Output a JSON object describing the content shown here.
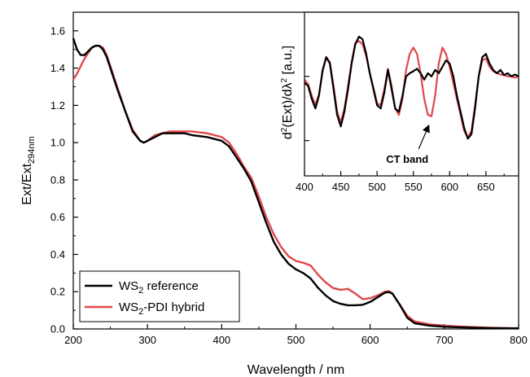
{
  "chart_data": [
    {
      "type": "line",
      "xlabel": "Wavelength / nm",
      "ylabel_main": "Ext/Ext",
      "ylabel_sub": "294nm",
      "xlim": [
        200,
        800
      ],
      "ylim": [
        0,
        1.7
      ],
      "xticks": [
        200,
        300,
        400,
        500,
        600,
        700,
        800
      ],
      "yticks": [
        0.0,
        0.2,
        0.4,
        0.6,
        0.8,
        1.0,
        1.2,
        1.4,
        1.6
      ],
      "xtick_labels": [
        "200",
        "300",
        "400",
        "500",
        "600",
        "700",
        "800"
      ],
      "ytick_labels": [
        "0.0",
        "0.2",
        "0.4",
        "0.6",
        "0.8",
        "1.0",
        "1.2",
        "1.4",
        "1.6"
      ],
      "legend": {
        "position": "bottom-left",
        "entries": [
          {
            "main": "WS",
            "sub": "2",
            "rest": " reference",
            "color": "#000000"
          },
          {
            "main": "WS",
            "sub": "2",
            "rest": "-PDI hybrid",
            "color": "#e0474c"
          }
        ]
      },
      "series": [
        {
          "key": "ref",
          "color": "#000000",
          "x": [
            200,
            205,
            210,
            215,
            220,
            225,
            230,
            235,
            240,
            245,
            250,
            255,
            260,
            270,
            280,
            290,
            295,
            300,
            310,
            320,
            330,
            340,
            350,
            360,
            380,
            400,
            410,
            420,
            430,
            440,
            450,
            460,
            470,
            480,
            490,
            500,
            510,
            520,
            530,
            540,
            550,
            560,
            570,
            580,
            590,
            600,
            610,
            620,
            625,
            630,
            640,
            650,
            660,
            680,
            700,
            720,
            740,
            760,
            780,
            800
          ],
          "y": [
            1.56,
            1.5,
            1.47,
            1.47,
            1.49,
            1.51,
            1.52,
            1.52,
            1.5,
            1.46,
            1.4,
            1.34,
            1.28,
            1.17,
            1.06,
            1.01,
            1.0,
            1.01,
            1.03,
            1.05,
            1.05,
            1.05,
            1.05,
            1.04,
            1.03,
            1.01,
            0.98,
            0.92,
            0.86,
            0.79,
            0.68,
            0.57,
            0.47,
            0.4,
            0.35,
            0.32,
            0.3,
            0.27,
            0.22,
            0.18,
            0.15,
            0.135,
            0.127,
            0.127,
            0.13,
            0.145,
            0.17,
            0.195,
            0.198,
            0.19,
            0.13,
            0.06,
            0.03,
            0.018,
            0.012,
            0.009,
            0.007,
            0.005,
            0.004,
            0.003
          ]
        },
        {
          "key": "hybrid",
          "color": "#e0474c",
          "x": [
            200,
            205,
            210,
            215,
            220,
            225,
            230,
            235,
            240,
            245,
            250,
            255,
            260,
            270,
            280,
            290,
            295,
            300,
            310,
            320,
            330,
            340,
            350,
            360,
            380,
            400,
            410,
            420,
            430,
            440,
            450,
            460,
            470,
            480,
            490,
            500,
            510,
            520,
            530,
            540,
            550,
            560,
            570,
            580,
            590,
            600,
            610,
            620,
            625,
            630,
            640,
            650,
            660,
            680,
            700,
            720,
            740,
            760,
            780,
            800
          ],
          "y": [
            1.34,
            1.37,
            1.41,
            1.45,
            1.48,
            1.51,
            1.52,
            1.52,
            1.51,
            1.47,
            1.41,
            1.35,
            1.29,
            1.17,
            1.07,
            1.01,
            1.0,
            1.01,
            1.04,
            1.05,
            1.06,
            1.06,
            1.06,
            1.06,
            1.05,
            1.03,
            1.0,
            0.94,
            0.87,
            0.81,
            0.71,
            0.6,
            0.51,
            0.44,
            0.39,
            0.365,
            0.355,
            0.34,
            0.29,
            0.25,
            0.22,
            0.21,
            0.215,
            0.19,
            0.16,
            0.165,
            0.18,
            0.2,
            0.203,
            0.19,
            0.13,
            0.07,
            0.04,
            0.025,
            0.018,
            0.013,
            0.01,
            0.007,
            0.005,
            0.004
          ]
        }
      ]
    },
    {
      "type": "line",
      "xlabel": "",
      "ylabel": "d²(Ext)/dλ² [a.u.]",
      "ylabel_parts": {
        "d": "d",
        "sup1": "2",
        "mid": "(Ext)/dλ",
        "sup2": "2",
        "end": " [a.u.]"
      },
      "xlim": [
        400,
        695
      ],
      "ylim": [
        -1.55,
        1.0
      ],
      "xticks": [
        400,
        450,
        500,
        550,
        600,
        650
      ],
      "xtick_labels": [
        "400",
        "450",
        "500",
        "550",
        "600",
        "650"
      ],
      "yticks": [
        -1.0,
        0.0
      ],
      "annotation": {
        "text": "CT band",
        "x": 573,
        "y": -0.65
      },
      "series": [
        {
          "key": "ref",
          "color": "#000000",
          "x": [
            400,
            405,
            410,
            415,
            420,
            425,
            430,
            435,
            440,
            445,
            450,
            455,
            460,
            465,
            470,
            475,
            480,
            485,
            490,
            495,
            500,
            505,
            510,
            515,
            520,
            525,
            530,
            535,
            540,
            545,
            550,
            555,
            560,
            565,
            570,
            575,
            580,
            585,
            590,
            595,
            600,
            605,
            610,
            615,
            620,
            625,
            630,
            635,
            640,
            645,
            650,
            655,
            660,
            665,
            670,
            675,
            680,
            685,
            690,
            695
          ],
          "y": [
            -0.1,
            -0.15,
            -0.35,
            -0.5,
            -0.3,
            0.1,
            0.3,
            0.2,
            -0.2,
            -0.6,
            -0.78,
            -0.55,
            -0.2,
            0.2,
            0.5,
            0.62,
            0.58,
            0.35,
            0.05,
            -0.2,
            -0.45,
            -0.5,
            -0.25,
            0.1,
            -0.2,
            -0.5,
            -0.55,
            -0.3,
            0.0,
            0.05,
            0.08,
            0.12,
            0.05,
            -0.05,
            0.05,
            0.0,
            0.1,
            0.05,
            0.15,
            0.25,
            0.2,
            0.0,
            -0.3,
            -0.55,
            -0.8,
            -0.97,
            -0.9,
            -0.5,
            0.0,
            0.3,
            0.35,
            0.2,
            0.1,
            0.05,
            0.1,
            0.02,
            0.05,
            0.0,
            0.03,
            0.0
          ]
        },
        {
          "key": "hybrid",
          "color": "#e0474c",
          "x": [
            400,
            405,
            410,
            415,
            420,
            425,
            430,
            435,
            440,
            445,
            450,
            455,
            460,
            465,
            470,
            475,
            480,
            485,
            490,
            495,
            500,
            505,
            510,
            515,
            520,
            525,
            530,
            535,
            540,
            545,
            550,
            555,
            560,
            565,
            570,
            575,
            580,
            585,
            590,
            595,
            600,
            605,
            610,
            615,
            620,
            625,
            630,
            635,
            640,
            645,
            650,
            655,
            660,
            665,
            670,
            675,
            680,
            685,
            690,
            695
          ],
          "y": [
            -0.05,
            -0.12,
            -0.3,
            -0.45,
            -0.28,
            0.08,
            0.3,
            0.22,
            -0.15,
            -0.55,
            -0.72,
            -0.5,
            -0.15,
            0.22,
            0.52,
            0.55,
            0.5,
            0.32,
            0.05,
            -0.18,
            -0.42,
            -0.45,
            -0.2,
            0.12,
            -0.15,
            -0.5,
            -0.6,
            -0.35,
            0.1,
            0.35,
            0.45,
            0.35,
            0.05,
            -0.35,
            -0.6,
            -0.62,
            -0.3,
            0.2,
            0.45,
            0.35,
            0.15,
            -0.1,
            -0.35,
            -0.6,
            -0.85,
            -0.95,
            -0.85,
            -0.45,
            0.0,
            0.25,
            0.28,
            0.15,
            0.08,
            0.05,
            0.03,
            0.02,
            0.0,
            0.0,
            -0.02,
            0.0
          ]
        }
      ]
    }
  ]
}
